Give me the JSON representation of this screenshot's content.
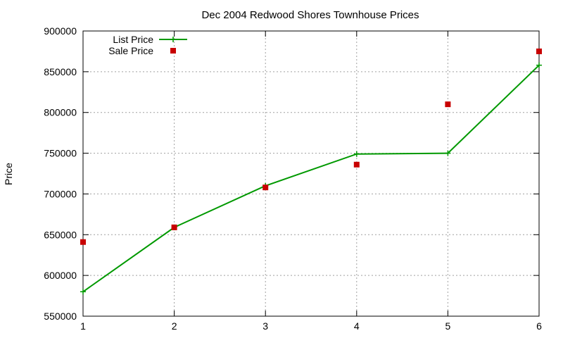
{
  "chart_data": {
    "type": "line",
    "title": "Dec 2004 Redwood Shores Townhouse Prices",
    "xlabel": "",
    "ylabel": "Price",
    "x": [
      1,
      2,
      3,
      4,
      5,
      6
    ],
    "xlim": [
      1,
      6
    ],
    "ylim": [
      550000,
      900000
    ],
    "xticks": [
      "1",
      "2",
      "3",
      "4",
      "5",
      "6"
    ],
    "yticks": [
      "550000",
      "600000",
      "650000",
      "700000",
      "750000",
      "800000",
      "850000",
      "900000"
    ],
    "grid": true,
    "legend_position": "top-left",
    "series": [
      {
        "name": "List Price",
        "style": "line+cross",
        "color": "#009900",
        "values": [
          580000,
          659000,
          710000,
          749000,
          750000,
          858000
        ]
      },
      {
        "name": "Sale Price",
        "style": "square-marker",
        "color": "#c80000",
        "values": [
          641000,
          659000,
          708000,
          736000,
          810000,
          875000
        ]
      }
    ]
  }
}
